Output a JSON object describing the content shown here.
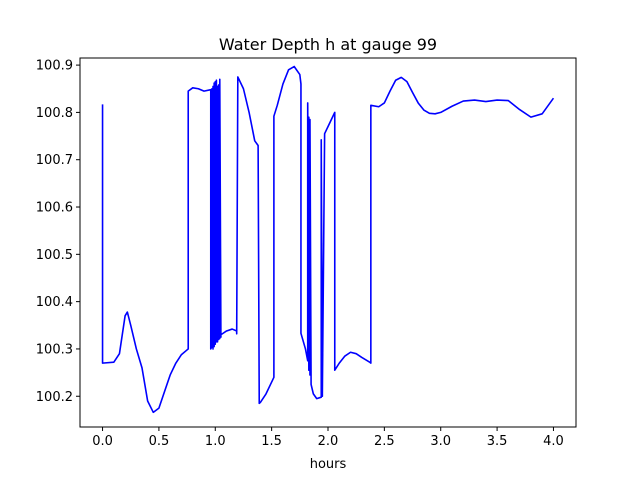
{
  "chart_data": {
    "type": "line",
    "title": "Water Depth h at gauge 99",
    "xlabel": "hours",
    "ylabel": "",
    "xlim": [
      -0.2,
      4.2
    ],
    "ylim": [
      100.135,
      100.915
    ],
    "xticks": [
      0.0,
      0.5,
      1.0,
      1.5,
      2.0,
      2.5,
      3.0,
      3.5,
      4.0
    ],
    "xtick_labels": [
      "0.0",
      "0.5",
      "1.0",
      "1.5",
      "2.0",
      "2.5",
      "3.0",
      "3.5",
      "4.0"
    ],
    "yticks": [
      100.2,
      100.3,
      100.4,
      100.5,
      100.6,
      100.7,
      100.8,
      100.9
    ],
    "ytick_labels": [
      "100.2",
      "100.3",
      "100.4",
      "100.5",
      "100.6",
      "100.7",
      "100.8",
      "100.9"
    ],
    "grid": false,
    "series": [
      {
        "color": "#0000ff",
        "x": [
          0.0,
          0.0,
          0.1,
          0.15,
          0.2,
          0.22,
          0.25,
          0.3,
          0.35,
          0.4,
          0.45,
          0.5,
          0.55,
          0.6,
          0.65,
          0.7,
          0.76,
          0.76,
          0.8,
          0.85,
          0.9,
          0.96,
          0.96,
          0.97,
          0.97,
          0.98,
          0.98,
          0.99,
          0.99,
          1.0,
          1.0,
          1.01,
          1.01,
          1.02,
          1.02,
          1.03,
          1.03,
          1.04,
          1.04,
          1.05,
          1.05,
          1.1,
          1.15,
          1.19,
          1.19,
          1.2,
          1.25,
          1.3,
          1.35,
          1.38,
          1.39,
          1.4,
          1.45,
          1.5,
          1.52,
          1.52,
          1.55,
          1.6,
          1.65,
          1.7,
          1.75,
          1.76,
          1.76,
          1.8,
          1.82,
          1.82,
          1.83,
          1.83,
          1.84,
          1.84,
          1.85,
          1.87,
          1.9,
          1.94,
          1.94,
          1.95,
          1.95,
          1.97,
          1.97,
          2.0,
          2.06,
          2.06,
          2.1,
          2.15,
          2.2,
          2.25,
          2.3,
          2.37,
          2.38,
          2.38,
          2.45,
          2.5,
          2.55,
          2.6,
          2.65,
          2.7,
          2.75,
          2.8,
          2.85,
          2.9,
          2.95,
          3.0,
          3.1,
          3.2,
          3.3,
          3.4,
          3.5,
          3.6,
          3.7,
          3.8,
          3.9,
          4.0
        ],
        "y": [
          100.817,
          100.27,
          100.272,
          100.29,
          100.37,
          100.378,
          100.35,
          100.3,
          100.26,
          100.19,
          100.166,
          100.175,
          100.21,
          100.245,
          100.27,
          100.288,
          100.3,
          100.845,
          100.852,
          100.85,
          100.845,
          100.848,
          100.3,
          100.305,
          100.85,
          100.3,
          100.855,
          100.305,
          100.862,
          100.31,
          100.865,
          100.315,
          100.868,
          100.315,
          100.855,
          100.32,
          100.858,
          100.322,
          100.87,
          100.325,
          100.33,
          100.338,
          100.342,
          100.338,
          100.332,
          100.875,
          100.85,
          100.8,
          100.74,
          100.73,
          100.185,
          100.187,
          100.205,
          100.23,
          100.24,
          100.792,
          100.815,
          100.86,
          100.89,
          100.897,
          100.88,
          100.86,
          100.333,
          100.3,
          100.275,
          100.82,
          100.255,
          100.79,
          100.245,
          100.785,
          100.225,
          100.205,
          100.195,
          100.198,
          100.742,
          100.2,
          100.205,
          100.755,
          100.755,
          100.77,
          100.8,
          100.255,
          100.27,
          100.285,
          100.293,
          100.29,
          100.282,
          100.272,
          100.27,
          100.815,
          100.812,
          100.82,
          100.845,
          100.868,
          100.874,
          100.865,
          100.842,
          100.82,
          100.805,
          100.798,
          100.797,
          100.8,
          100.813,
          100.824,
          100.826,
          100.823,
          100.826,
          100.825,
          100.806,
          100.79,
          100.797,
          100.83
        ]
      }
    ]
  }
}
